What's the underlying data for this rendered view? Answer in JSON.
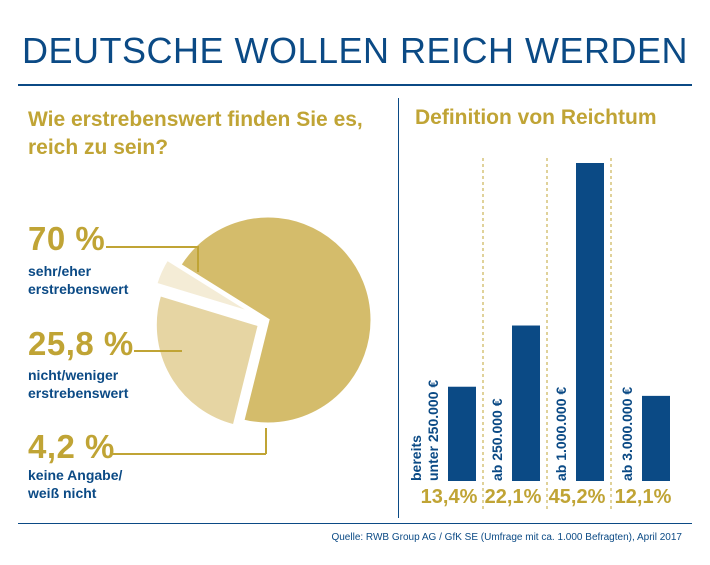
{
  "title": "DEUTSCHE WOLLEN REICH WERDEN",
  "source": "Quelle: RWB Group AG / GfK SE (Umfrage mit ca. 1.000 Befragten), April 2017",
  "colors": {
    "blue": "#0b4a85",
    "gold": "#c0a435",
    "gold_dark": "#d4bc6b",
    "gold_mid": "#e6d5a3",
    "gold_light": "#f4ecd6"
  },
  "chart_data": [
    {
      "type": "pie",
      "title": "Wie erstrebenswert finden Sie es, reich zu sein?",
      "slices": [
        {
          "label_pct": "70 %",
          "value": 70,
          "desc_line1": "sehr/eher",
          "desc_line2": "erstrebenswert"
        },
        {
          "label_pct": "25,8 %",
          "value": 25.8,
          "desc_line1": "nicht/weniger",
          "desc_line2": "erstrebenswert"
        },
        {
          "label_pct": "4,2 %",
          "value": 4.2,
          "desc_line1": "keine Angabe/",
          "desc_line2": "weiß nicht"
        }
      ]
    },
    {
      "type": "bar",
      "title": "Definition von Reichtum",
      "categories": [
        "bereits unter 250.000 €",
        "ab 250.000 €",
        "ab 1.000.000 €",
        "ab 3.000.000 €"
      ],
      "category_lines": [
        [
          "bereits",
          "unter 250.000 €"
        ],
        [
          "ab 250.000 €"
        ],
        [
          "ab 1.000.000 €"
        ],
        [
          "ab 3.000.000 €"
        ]
      ],
      "values": [
        13.4,
        22.1,
        45.2,
        12.1
      ],
      "value_labels": [
        "13,4%",
        "22,1%",
        "45,2%",
        "12,1%"
      ],
      "ylim": [
        0,
        45.2
      ]
    }
  ]
}
